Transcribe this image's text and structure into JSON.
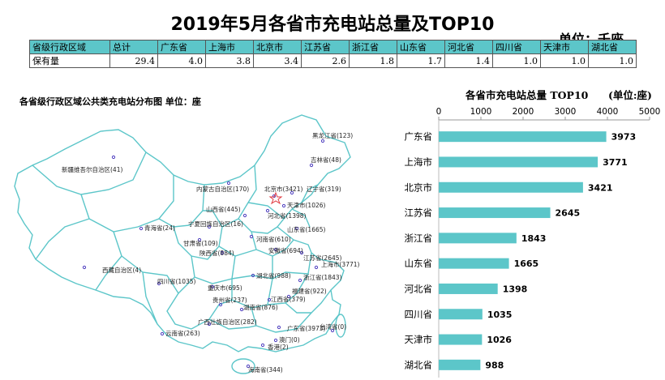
{
  "title": "2019年5月各省市充电站总量及TOP10",
  "unit_top": "单位：千座",
  "summary_table": {
    "header": [
      "省级行政区域",
      "总计",
      "广东省",
      "上海市",
      "北京市",
      "江苏省",
      "浙江省",
      "山东省",
      "河北省",
      "四川省",
      "天津市",
      "湖北省"
    ],
    "row_label": "保有量",
    "values": [
      "29.4",
      "4.0",
      "3.8",
      "3.4",
      "2.6",
      "1.8",
      "1.7",
      "1.4",
      "1.0",
      "1.0",
      "1.0"
    ]
  },
  "map": {
    "title": "各省级行政区域公共类充电站分布图  单位：座",
    "colors": {
      "outline": "#5cc6c9",
      "point": "#4f3fbf",
      "capital": "#e0383f"
    },
    "labels": [
      "黑龙江省(123)",
      "吉林省(48)",
      "辽宁省(319)",
      "北京市(3421)",
      "天津市(1026)",
      "河北省(1398)",
      "山东省(1665)",
      "内蒙古自治区(170)",
      "新疆维吾尔自治区(41)",
      "山西省(445)",
      "青海省(24)",
      "宁夏回族自治区(16)",
      "甘肃省(109)",
      "陕西省(884)",
      "河南省(610)",
      "安徽省(694)",
      "江苏省(2645)",
      "上海市(3771)",
      "浙江省(1843)",
      "湖北省(988)",
      "西藏自治区(4)",
      "四川省(1035)",
      "重庆市(695)",
      "贵州省(237)",
      "湖南省(876)",
      "江西省(379)",
      "福建省(922)",
      "广西壮族自治区(282)",
      "云南省(263)",
      "广东省(3973)",
      "台湾省(0)",
      "澳门(0)",
      "香港(2)",
      "海南省(344)"
    ]
  },
  "chart_data": {
    "type": "bar",
    "orientation": "horizontal",
    "title": "各省市充电站总量 TOP10",
    "unit": "(单位:座)",
    "categories": [
      "广东省",
      "上海市",
      "北京市",
      "江苏省",
      "浙江省",
      "山东省",
      "河北省",
      "四川省",
      "天津市",
      "湖北省"
    ],
    "values": [
      3973,
      3771,
      3421,
      2645,
      1843,
      1665,
      1398,
      1035,
      1026,
      988
    ],
    "xlim": [
      0,
      5000
    ],
    "xticks": [
      "0",
      "1000",
      "2000",
      "3000",
      "4000",
      "5000"
    ],
    "bar_color": "#5cc6c9",
    "axis_position": "top"
  }
}
